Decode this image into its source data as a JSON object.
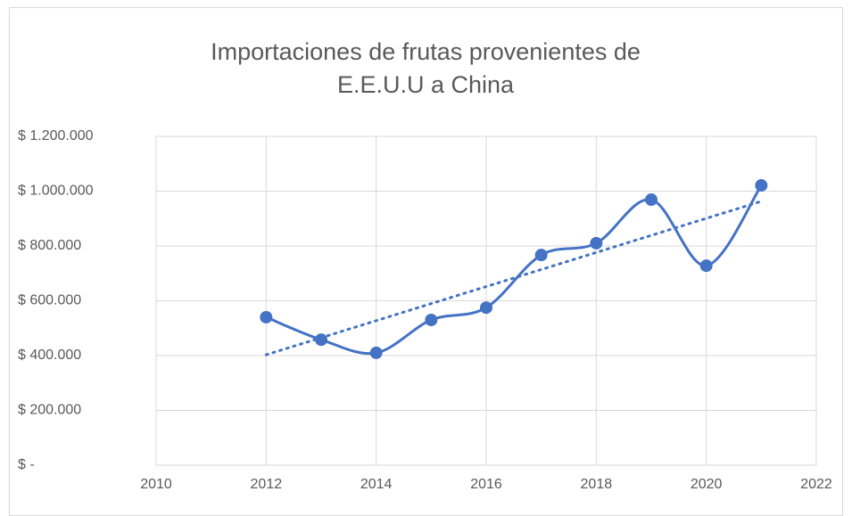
{
  "chart_data": {
    "type": "scatter-smooth",
    "title": "Importaciones de frutas provenientes de E.E.U.U a China",
    "x": [
      2012,
      2013,
      2014,
      2015,
      2016,
      2017,
      2018,
      2019,
      2020,
      2021
    ],
    "series": [
      {
        "color": "#4472c4",
        "values": [
          540000,
          458000,
          410000,
          530000,
          575000,
          767000,
          810000,
          969000,
          728000,
          1021000
        ]
      }
    ],
    "trendline": {
      "x": [
        2012,
        2021
      ],
      "values": [
        403000,
        963000
      ],
      "color": "#4472c4"
    },
    "xlim": [
      2010,
      2022
    ],
    "xticks": [
      2010,
      2012,
      2014,
      2016,
      2018,
      2020,
      2022
    ],
    "ylim": [
      0,
      1200000
    ],
    "yticks": [
      {
        "value": 0,
        "label": "$ -"
      },
      {
        "value": 200000,
        "label": "$ 200.000"
      },
      {
        "value": 400000,
        "label": "$ 400.000"
      },
      {
        "value": 600000,
        "label": "$ 600.000"
      },
      {
        "value": 800000,
        "label": "$ 800.000"
      },
      {
        "value": 1000000,
        "label": "$ 1.000.000"
      },
      {
        "value": 1200000,
        "label": "$ 1.200.000"
      }
    ],
    "grid": true
  }
}
